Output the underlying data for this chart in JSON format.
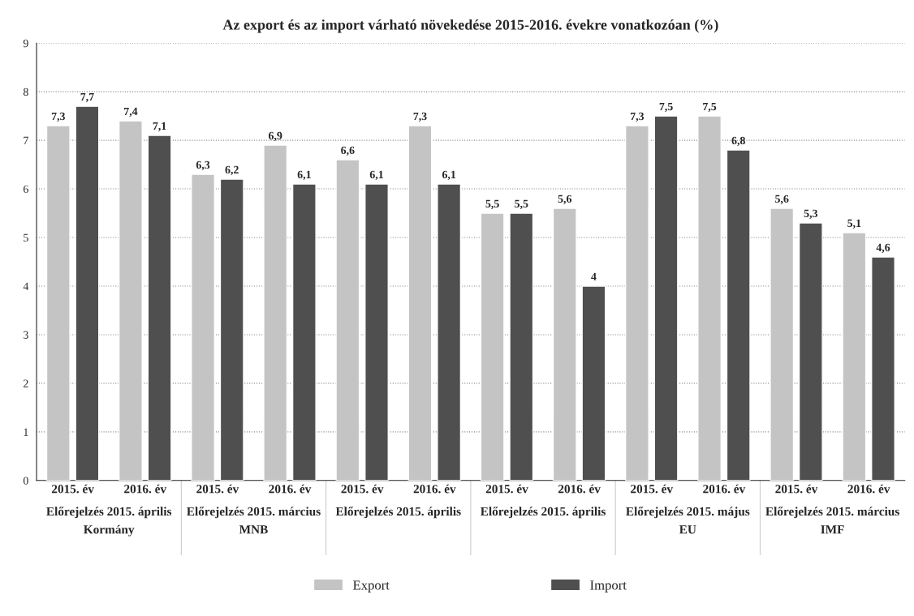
{
  "chart_data": {
    "type": "bar",
    "title": "Az export és az import várható növekedése 2015-2016. évekre vonatkozóan (%)",
    "categories": [
      "2015. év",
      "2016. év",
      "2015. év",
      "2016. év",
      "2015. év",
      "2016. év",
      "2015. év",
      "2016. év",
      "2015. év",
      "2016. év",
      "2015. év",
      "2016. év"
    ],
    "series": [
      {
        "name": "Export",
        "color": "#c4c4c4",
        "values": [
          7.3,
          7.4,
          6.3,
          6.9,
          6.6,
          7.3,
          5.5,
          5.6,
          7.3,
          7.5,
          5.6,
          5.1
        ],
        "value_labels": [
          "7,3",
          "7,4",
          "6,3",
          "6,9",
          "6,6",
          "7,3",
          "5,5",
          "5,6",
          "7,3",
          "7,5",
          "5,6",
          "5,1"
        ]
      },
      {
        "name": "Import",
        "color": "#4f4f4f",
        "values": [
          7.7,
          7.1,
          6.2,
          6.1,
          6.1,
          6.1,
          5.5,
          4,
          7.5,
          6.8,
          5.3,
          4.6
        ],
        "value_labels": [
          "7,7",
          "7,1",
          "6,2",
          "6,1",
          "6,1",
          "6,1",
          "5,5",
          "4",
          "7,5",
          "6,8",
          "5,3",
          "4,6"
        ]
      }
    ],
    "annotations": [
      "Előrejelzés 2015. április\nKormány",
      "Előrejelzés 2015. március\nMNB",
      "Előrejelzés 2015. április",
      "Előrejelzés 2015. április",
      "Előrejelzés 2015. május\nEU",
      "Előrejelzés 2015. március\nIMF"
    ],
    "ylim": [
      0,
      9
    ],
    "yticks": [
      0,
      1,
      2,
      3,
      4,
      5,
      6,
      7,
      8,
      9
    ],
    "grid": "y",
    "legend": "bottom"
  }
}
